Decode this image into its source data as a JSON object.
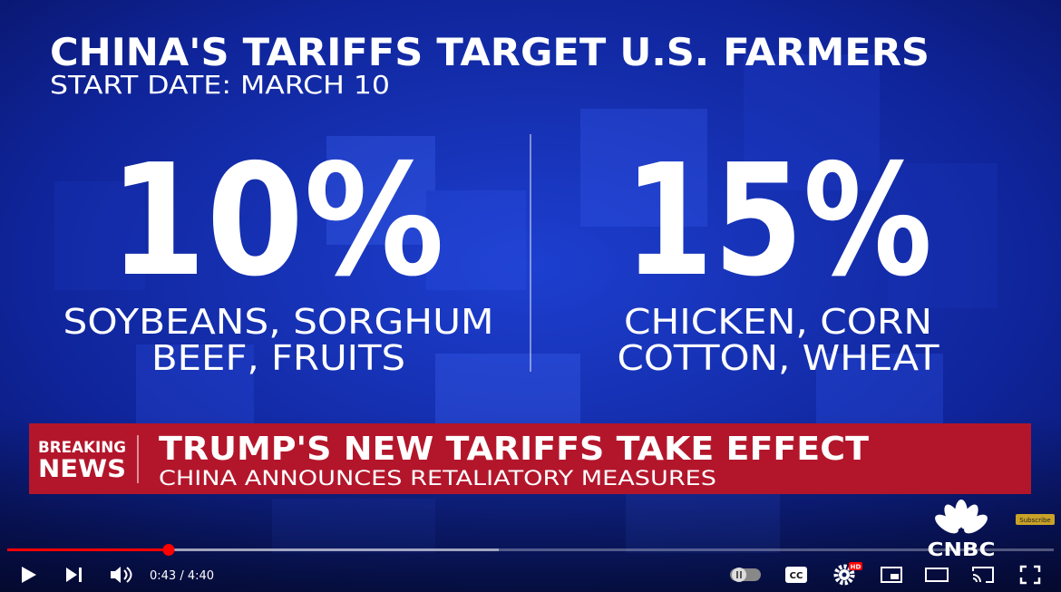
{
  "graphic": {
    "title": "CHINA'S TARIFFS TARGET U.S. FARMERS",
    "subtitle": "START DATE: MARCH 10",
    "panels": [
      {
        "rate": "10%",
        "lines": [
          "SOYBEANS, SORGHUM",
          "BEEF, FRUITS"
        ]
      },
      {
        "rate": "15%",
        "lines": [
          "CHICKEN, CORN",
          "COTTON, WHEAT"
        ]
      }
    ]
  },
  "banner": {
    "label": [
      "BREAKING",
      "NEWS"
    ],
    "headline": "TRUMP'S NEW TARIFFS TAKE EFFECT",
    "subheadline": "CHINA ANNOUNCES RETALIATORY MEASURES"
  },
  "brand": {
    "logo": "CNBC",
    "subscribe": "Subscribe"
  },
  "player": {
    "time": "0:43 / 4:40",
    "quality": "HD"
  }
}
